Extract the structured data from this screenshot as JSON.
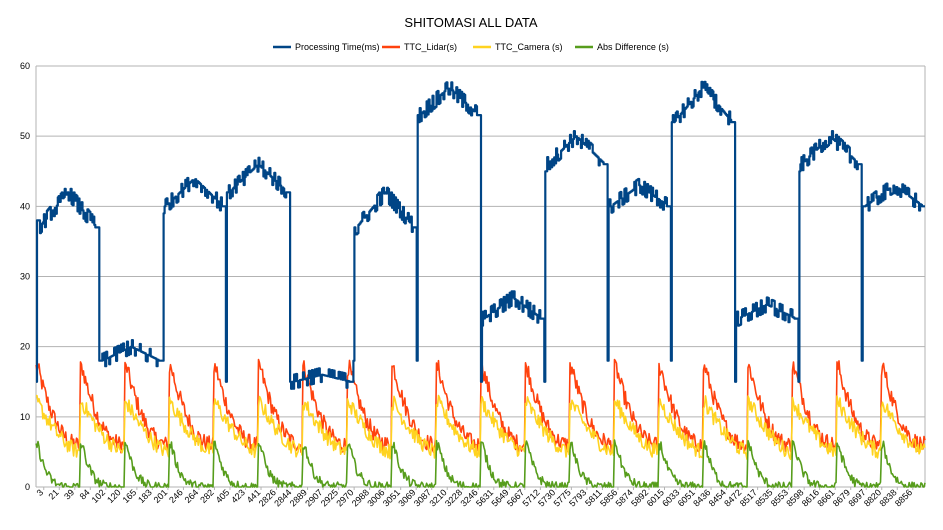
{
  "chart_data": {
    "type": "line",
    "title": "SHITOMASI ALL DATA",
    "xlabel": "",
    "ylabel": "",
    "ylim": [
      0,
      60
    ],
    "yticks": [
      0,
      10,
      20,
      30,
      40,
      50,
      60
    ],
    "grid": true,
    "legend_position": "top",
    "x_tick_labels": [
      "3",
      "21",
      "39",
      "84",
      "102",
      "120",
      "165",
      "183",
      "201",
      "246",
      "264",
      "282",
      "405",
      "423",
      "441",
      "2826",
      "2844",
      "2889",
      "2907",
      "2925",
      "2970",
      "2988",
      "3006",
      "3051",
      "3069",
      "3087",
      "3210",
      "3228",
      "3246",
      "5631",
      "5649",
      "5667",
      "5712",
      "5730",
      "5775",
      "5793",
      "5811",
      "5856",
      "5874",
      "5892",
      "6015",
      "6033",
      "6051",
      "8436",
      "8454",
      "8472",
      "8517",
      "8535",
      "8553",
      "8598",
      "8616",
      "8661",
      "8679",
      "8697",
      "8820",
      "8838",
      "8856"
    ],
    "colors": {
      "processing": "#004586",
      "lidar": "#ff420e",
      "camera": "#ffd320",
      "absdiff": "#579d1c"
    },
    "series": [
      {
        "name": "Processing Time(ms)",
        "segment_levels": [
          37,
          18,
          40,
          42,
          15,
          37,
          53,
          24,
          46,
          40,
          52,
          24,
          46,
          40
        ],
        "segment_peaks": [
          42,
          20,
          44,
          46,
          16,
          42,
          57,
          27,
          50,
          43,
          57,
          26,
          50,
          43
        ],
        "drop_values": [
          15,
          18,
          18,
          15,
          15,
          18,
          18,
          15,
          15,
          18,
          18,
          15,
          15,
          18
        ]
      },
      {
        "name": "TTC_Lidar(s)",
        "cycle_range": [
          6,
          17
        ],
        "cycles": 20
      },
      {
        "name": "TTC_Camera (s)",
        "cycle_range": [
          5,
          12
        ],
        "cycles": 20
      },
      {
        "name": "Abs Difference (s)",
        "cycle_range": [
          0,
          6
        ],
        "cycles": 20
      }
    ]
  }
}
